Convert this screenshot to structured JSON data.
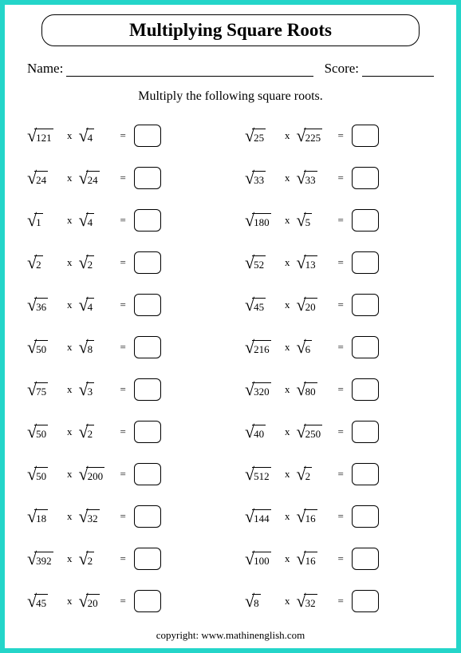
{
  "title": "Multiplying Square Roots",
  "name_label": "Name:",
  "score_label": "Score:",
  "instruction": "Multiply the following square roots.",
  "times": "x",
  "equals": "=",
  "copyright": "copyright:   www.mathinenglish.com",
  "columns": [
    [
      {
        "a": "121",
        "b": "4"
      },
      {
        "a": "24",
        "b": "24"
      },
      {
        "a": "1",
        "b": "4"
      },
      {
        "a": "2",
        "b": "2"
      },
      {
        "a": "36",
        "b": "4"
      },
      {
        "a": "50",
        "b": "8"
      },
      {
        "a": "75",
        "b": "3"
      },
      {
        "a": "50",
        "b": "2"
      },
      {
        "a": "50",
        "b": "200"
      },
      {
        "a": "18",
        "b": "32"
      },
      {
        "a": "392",
        "b": "2"
      },
      {
        "a": "45",
        "b": "20"
      }
    ],
    [
      {
        "a": "25",
        "b": "225"
      },
      {
        "a": "33",
        "b": "33"
      },
      {
        "a": "180",
        "b": "5"
      },
      {
        "a": "52",
        "b": "13"
      },
      {
        "a": "45",
        "b": "20"
      },
      {
        "a": "216",
        "b": "6"
      },
      {
        "a": "320",
        "b": "80"
      },
      {
        "a": "40",
        "b": "250"
      },
      {
        "a": "512",
        "b": "2"
      },
      {
        "a": "144",
        "b": "16"
      },
      {
        "a": "100",
        "b": "16"
      },
      {
        "a": "8",
        "b": "32"
      }
    ]
  ],
  "style": {
    "page_bg": "#ffffff",
    "outer_bg": "#24d5c9",
    "border_color": "#000000",
    "text_color": "#000000",
    "title_fontsize": 23,
    "body_fontsize": 14,
    "answer_box": {
      "width": 34,
      "height": 28,
      "radius": 6
    }
  }
}
